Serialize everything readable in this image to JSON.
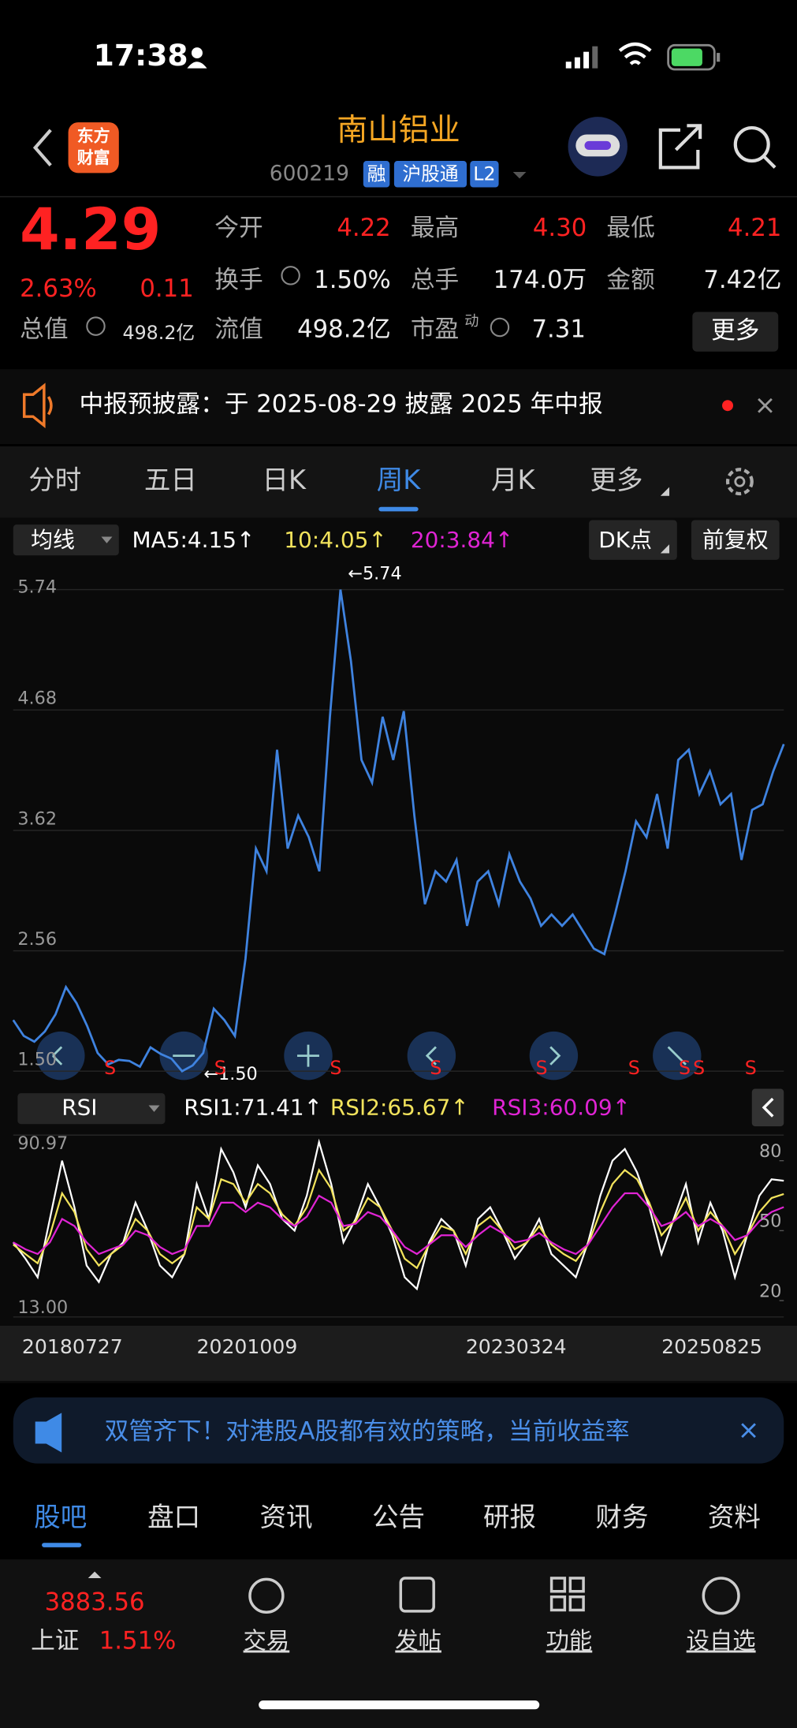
{
  "status_bar": {
    "time": "17:38"
  },
  "header": {
    "logo": [
      "东方",
      "财富"
    ],
    "name": "南山铝业",
    "code": "600219",
    "tags": [
      "融",
      "沪股通",
      "L2"
    ]
  },
  "quote": {
    "price": "4.29",
    "change_pct": "2.63%",
    "change": "0.11",
    "total_value": {
      "label": "总值",
      "value": "498.2亿"
    },
    "fields": [
      {
        "label": "今开",
        "value": "4.22"
      },
      {
        "label": "最高",
        "value": "4.30"
      },
      {
        "label": "最低",
        "value": "4.21"
      },
      {
        "label": "换手",
        "value": "1.50%"
      },
      {
        "label": "总手",
        "value": "174.0万"
      },
      {
        "label": "金额",
        "value": "7.42亿"
      },
      {
        "label": "流值",
        "value": "498.2亿"
      },
      {
        "label": "市盈",
        "value": "7.31"
      }
    ],
    "pe_suffix": "动",
    "more_button": "更多"
  },
  "notice": "中报预披露：于 2025-08-29 披露 2025 年中报",
  "period_tabs": [
    "分时",
    "五日",
    "日K",
    "周K",
    "月K",
    "更多"
  ],
  "toolbar": {
    "indicator": "均线",
    "ma_legend": [
      "MA5:4.15↑",
      "10:4.05↑",
      "20:3.84↑"
    ],
    "buttons": [
      "DK点",
      "前复权"
    ]
  },
  "chart_data": [
    {
      "type": "line",
      "color": "#3f83e0",
      "ylim": [
        1.5,
        5.74
      ],
      "yticks": [
        5.74,
        4.68,
        3.62,
        2.56,
        {
          "value": 1.5,
          "label": "1.50"
        }
      ],
      "grid": true,
      "annotations": [
        "←5.74",
        "←1.50"
      ],
      "signals": [
        "S",
        "S",
        "S",
        "S",
        "S",
        "S",
        "S",
        "S",
        "S"
      ],
      "values": [
        1.95,
        1.81,
        1.76,
        1.85,
        2.0,
        2.24,
        2.1,
        1.9,
        1.66,
        1.56,
        1.6,
        1.59,
        1.54,
        1.71,
        1.65,
        1.61,
        1.5,
        1.55,
        1.66,
        2.05,
        1.95,
        1.81,
        2.49,
        3.46,
        3.26,
        4.33,
        3.46,
        3.75,
        3.56,
        3.26,
        4.62,
        5.74,
        5.11,
        4.24,
        4.04,
        4.62,
        4.24,
        4.67,
        3.75,
        2.97,
        3.26,
        3.17,
        3.36,
        2.78,
        3.17,
        3.26,
        2.97,
        3.41,
        3.17,
        3.02,
        2.78,
        2.88,
        2.78,
        2.88,
        2.73,
        2.58,
        2.53,
        2.88,
        3.26,
        3.7,
        3.56,
        3.94,
        3.46,
        4.24,
        4.33,
        3.94,
        4.14,
        3.85,
        3.94,
        3.36,
        3.8,
        3.85,
        4.14,
        4.38
      ]
    },
    {
      "type": "line",
      "indicator": "RSI",
      "ylim": [
        13,
        90.97
      ],
      "yticks": [
        90.97,
        {
          "value": 13,
          "label": "13.00"
        }
      ],
      "yticks_right": [
        80,
        50,
        20
      ],
      "categories": [
        "20180727",
        null,
        null,
        null,
        null,
        null,
        null,
        null,
        null,
        null,
        null,
        null,
        null,
        null,
        null,
        "20201009",
        null,
        null,
        null,
        null,
        null,
        null,
        null,
        null,
        null,
        null,
        null,
        null,
        null,
        null,
        null,
        null,
        null,
        null,
        null,
        null,
        null,
        "20230324",
        null,
        null,
        null,
        null,
        null,
        null,
        null,
        null,
        null,
        null,
        null,
        null,
        null,
        null,
        null,
        "20250825",
        null,
        null,
        null,
        null,
        null,
        null,
        null,
        null,
        null,
        null
      ],
      "series": [
        {
          "name": "RSI1:71.41↑",
          "color": "#ffffff",
          "values": [
            45,
            38,
            30,
            55,
            80,
            60,
            35,
            28,
            40,
            45,
            62,
            50,
            35,
            30,
            40,
            70,
            55,
            85,
            75,
            60,
            78,
            70,
            55,
            50,
            65,
            88,
            70,
            45,
            55,
            70,
            60,
            48,
            30,
            25,
            45,
            55,
            50,
            35,
            55,
            60,
            50,
            38,
            45,
            55,
            40,
            35,
            30,
            45,
            65,
            80,
            85,
            75,
            60,
            40,
            55,
            70,
            45,
            62,
            50,
            30,
            48,
            65,
            72,
            71.41
          ]
        },
        {
          "name": "RSI2:65.67↑",
          "color": "#f2e35c",
          "values": [
            44,
            40,
            36,
            48,
            66,
            58,
            42,
            35,
            40,
            44,
            55,
            50,
            40,
            36,
            40,
            60,
            55,
            72,
            70,
            62,
            70,
            66,
            57,
            52,
            60,
            76,
            68,
            50,
            54,
            64,
            60,
            50,
            38,
            34,
            44,
            52,
            50,
            40,
            52,
            56,
            50,
            42,
            45,
            52,
            44,
            40,
            37,
            44,
            58,
            70,
            76,
            72,
            62,
            48,
            54,
            64,
            50,
            58,
            52,
            40,
            48,
            58,
            64,
            65.67
          ]
        },
        {
          "name": "RSI3:60.09↑",
          "color": "#e024d4",
          "values": [
            45,
            42,
            40,
            45,
            55,
            52,
            45,
            40,
            42,
            44,
            50,
            48,
            43,
            40,
            42,
            52,
            52,
            62,
            62,
            58,
            62,
            60,
            55,
            52,
            56,
            65,
            62,
            52,
            53,
            58,
            56,
            50,
            43,
            40,
            44,
            48,
            48,
            43,
            48,
            52,
            49,
            45,
            46,
            49,
            45,
            42,
            40,
            44,
            52,
            60,
            66,
            66,
            60,
            52,
            54,
            58,
            52,
            55,
            52,
            46,
            48,
            54,
            58,
            60.09
          ]
        }
      ]
    }
  ],
  "ad": "双管齐下！对港股A股都有效的策略，当前收益率",
  "content_tabs": [
    "股吧",
    "盘口",
    "资讯",
    "公告",
    "研报",
    "财务",
    "资料"
  ],
  "bottom_nav": {
    "index_value": "3883.56",
    "index_name": "上证",
    "index_change": "1.51%",
    "items": [
      "交易",
      "发帖",
      "功能",
      "设自选"
    ]
  }
}
